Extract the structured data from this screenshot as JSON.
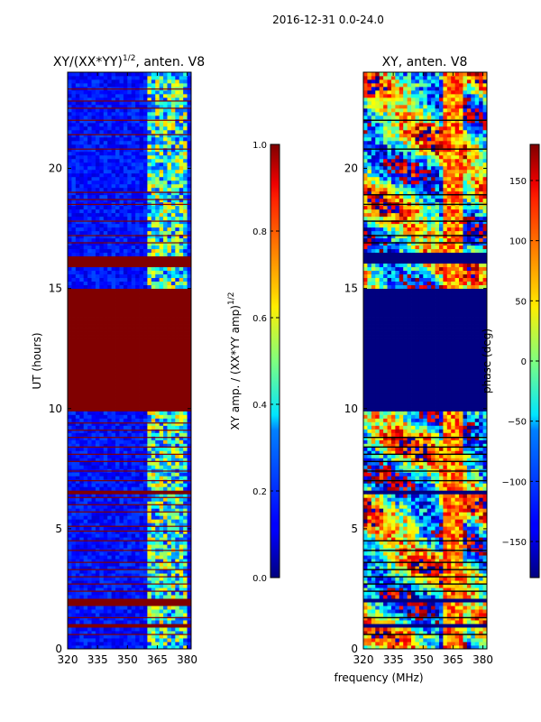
{
  "figure_title": "2016-12-31 0.0-24.0",
  "shared_xlabel": "frequency (MHz)",
  "chart_data": [
    {
      "type": "heatmap",
      "title_main": "XY/(XX*YY)",
      "title_exp": "1/2",
      "title_tail": ", anten. V8",
      "xlabel": "",
      "ylabel": "UT (hours)",
      "xlim": [
        320,
        382
      ],
      "ylim": [
        0,
        24
      ],
      "xticks": [
        "320",
        "335",
        "350",
        "365",
        "380"
      ],
      "yticks": [
        "0",
        "5",
        "10",
        "15",
        "20"
      ],
      "masked_time_ranges": [
        [
          9.9,
          15.0
        ],
        [
          15.9,
          16.4
        ],
        [
          1.8,
          2.1
        ],
        [
          6.5,
          6.6
        ],
        [
          0.95,
          1.1
        ]
      ],
      "flagged_lines_hours": [
        0.6,
        1.3,
        2.4,
        2.7,
        3.0,
        3.3,
        3.6,
        4.1,
        4.5,
        4.9,
        5.1,
        5.7,
        6.0,
        6.3,
        7.0,
        7.4,
        7.8,
        8.1,
        8.4,
        8.8,
        9.1,
        9.4,
        16.9,
        17.2,
        17.8,
        18.5,
        18.7,
        19.0,
        20.8,
        21.4,
        22.0,
        22.5,
        22.8,
        23.3
      ],
      "active_band_mhz": [
        360,
        380
      ],
      "colorbar": {
        "label_main": "XY amp. / (XX*YY amp)",
        "label_exp": "1/2",
        "min": 0.0,
        "max": 1.0,
        "ticks": [
          "0.0",
          "0.2",
          "0.4",
          "0.6",
          "0.8",
          "1.0"
        ],
        "colormap": "jet"
      }
    },
    {
      "type": "heatmap",
      "title_main": "XY, anten. V8",
      "xlabel": "frequency (MHz)",
      "ylabel": "",
      "xlim": [
        320,
        382
      ],
      "ylim": [
        0,
        24
      ],
      "xticks": [
        "320",
        "335",
        "350",
        "365",
        "380"
      ],
      "yticks": [
        "0",
        "5",
        "10",
        "15",
        "20"
      ],
      "masked_time_ranges": [
        [
          9.9,
          15.0
        ],
        [
          16.1,
          16.5
        ],
        [
          1.9,
          2.1
        ],
        [
          6.5,
          6.6
        ],
        [
          0.95,
          1.1
        ]
      ],
      "colorbar": {
        "label": "phase (deg)",
        "min": -180,
        "max": 180,
        "ticks": [
          "−150",
          "−100",
          "−50",
          "0",
          "50",
          "100",
          "150"
        ],
        "tick_values": [
          -150,
          -100,
          -50,
          0,
          50,
          100,
          150
        ],
        "colormap": "jet"
      }
    }
  ],
  "colors": {
    "masked_amp": "#800000",
    "masked_phase": "#00007f",
    "background_amp": "#0a1a8c"
  }
}
